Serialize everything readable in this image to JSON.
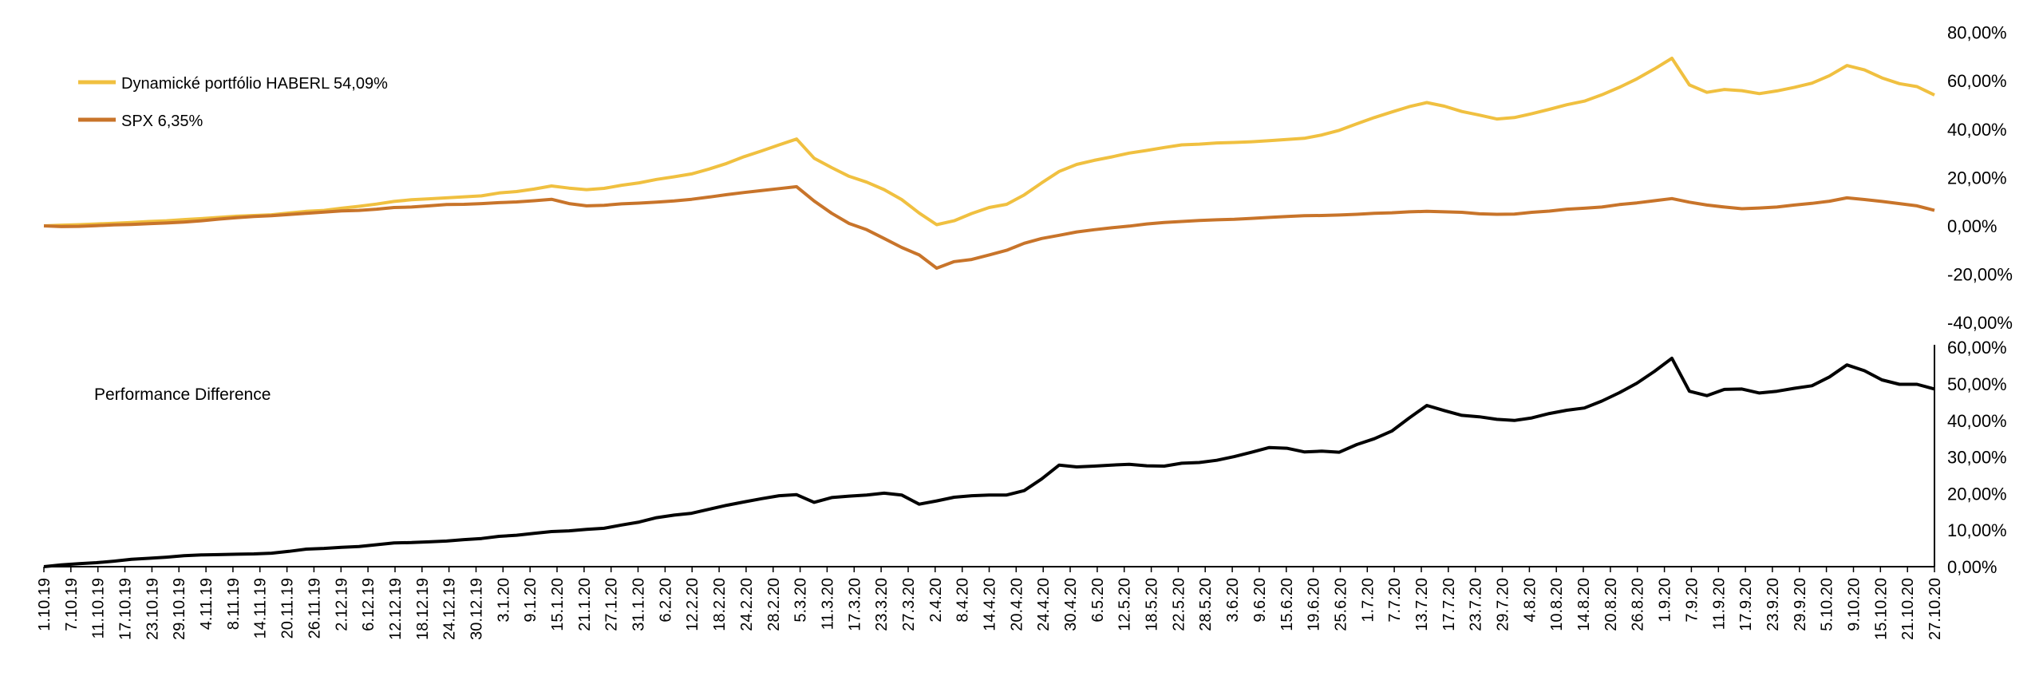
{
  "chart_data": [
    {
      "type": "line",
      "title": "",
      "xlabel": "",
      "ylabel": "",
      "ylim": [
        -40,
        80
      ],
      "y_ticks": [
        "80,00%",
        "60,00%",
        "40,00%",
        "20,00%",
        "0,00%",
        "-20,00%",
        "-40,00%"
      ],
      "y_tick_values": [
        80,
        60,
        40,
        20,
        0,
        -20,
        -40
      ],
      "grid": false,
      "legend_position": "top-left",
      "series": [
        {
          "name": "Dynamické portfólio HABERL 54,09%",
          "color": "#f0c040",
          "values": [
            0,
            0.3,
            0.5,
            0.8,
            1.1,
            1.4,
            1.8,
            2.1,
            2.6,
            3.0,
            3.5,
            4.0,
            4.3,
            4.6,
            5.3,
            6.0,
            6.4,
            7.3,
            8.1,
            9.0,
            10.1,
            10.8,
            11.2,
            11.6,
            12.0,
            12.4,
            13.6,
            14.2,
            15.2,
            16.5,
            15.6,
            15.0,
            15.5,
            16.8,
            17.8,
            19.2,
            20.3,
            21.5,
            23.5,
            25.8,
            28.6,
            31.0,
            33.5,
            35.9,
            28.0,
            24.1,
            20.5,
            18.1,
            15.0,
            10.9,
            5.3,
            0.5,
            2.1,
            5.1,
            7.6,
            8.9,
            12.8,
            17.8,
            22.5,
            25.4,
            27.1,
            28.5,
            30.1,
            31.2,
            32.4,
            33.5,
            33.8,
            34.3,
            34.5,
            34.8,
            35.2,
            35.7,
            36.2,
            37.6,
            39.5,
            42.2,
            44.8,
            47.1,
            49.3,
            51.0,
            49.5,
            47.3,
            45.8,
            44.2,
            44.8,
            46.4,
            48.2,
            50.1,
            51.6,
            54.2,
            57.3,
            60.8,
            64.9,
            69.3,
            58.3,
            55.2,
            56.4,
            55.9,
            54.7,
            55.8,
            57.3,
            59.0,
            62.1,
            66.3,
            64.5,
            61.2,
            58.8,
            57.6,
            54.1
          ]
        },
        {
          "name": "SPX 6,35%",
          "color": "#c8742a",
          "values": [
            0,
            -0.3,
            -0.2,
            0.1,
            0.4,
            0.6,
            0.9,
            1.2,
            1.6,
            2.1,
            2.8,
            3.4,
            3.9,
            4.2,
            4.7,
            5.2,
            5.7,
            6.2,
            6.4,
            6.9,
            7.6,
            7.8,
            8.3,
            8.8,
            8.9,
            9.2,
            9.6,
            9.9,
            10.4,
            11.0,
            9.2,
            8.3,
            8.5,
            9.1,
            9.4,
            9.8,
            10.3,
            11.0,
            11.9,
            12.9,
            13.8,
            14.6,
            15.4,
            16.2,
            10.3,
            5.2,
            1.0,
            -1.6,
            -5.2,
            -8.9,
            -12.0,
            -17.5,
            -14.8,
            -13.9,
            -12.0,
            -10.1,
            -7.2,
            -5.2,
            -3.9,
            -2.5,
            -1.6,
            -0.8,
            -0.1,
            0.8,
            1.4,
            1.8,
            2.2,
            2.5,
            2.7,
            3.1,
            3.5,
            3.9,
            4.2,
            4.3,
            4.5,
            4.8,
            5.2,
            5.4,
            5.8,
            6.0,
            5.8,
            5.6,
            5.0,
            4.8,
            4.9,
            5.6,
            6.1,
            6.9,
            7.3,
            7.8,
            8.8,
            9.5,
            10.4,
            11.3,
            9.8,
            8.6,
            7.8,
            7.1,
            7.4,
            7.8,
            8.6,
            9.3,
            10.2,
            11.6,
            10.9,
            10.1,
            9.2,
            8.3,
            6.4
          ]
        }
      ]
    },
    {
      "type": "line",
      "title": "",
      "xlabel": "",
      "ylabel": "",
      "ylim": [
        0,
        60
      ],
      "y_ticks": [
        "60,00%",
        "50,00%",
        "40,00%",
        "30,00%",
        "20,00%",
        "10,00%",
        "0,00%"
      ],
      "y_tick_values": [
        60,
        50,
        40,
        30,
        20,
        10,
        0
      ],
      "grid": false,
      "annotation": "Performance  Difference",
      "series": [
        {
          "name": "",
          "color": "#000000",
          "values": [
            0,
            0.5,
            0.8,
            1.1,
            1.5,
            2.0,
            2.3,
            2.6,
            3.0,
            3.2,
            3.3,
            3.4,
            3.5,
            3.7,
            4.2,
            4.8,
            5.0,
            5.3,
            5.5,
            6.0,
            6.5,
            6.6,
            6.8,
            7.0,
            7.4,
            7.7,
            8.3,
            8.6,
            9.1,
            9.6,
            9.8,
            10.2,
            10.5,
            11.4,
            12.2,
            13.4,
            14.1,
            14.6,
            15.7,
            16.8,
            17.7,
            18.6,
            19.4,
            19.7,
            17.6,
            18.9,
            19.3,
            19.6,
            20.1,
            19.6,
            17.1,
            18.0,
            19.0,
            19.4,
            19.6,
            19.6,
            20.8,
            24.0,
            27.8,
            27.3,
            27.5,
            27.8,
            28.0,
            27.6,
            27.5,
            28.3,
            28.5,
            29.1,
            30.1,
            31.3,
            32.6,
            32.4,
            31.4,
            31.6,
            31.3,
            33.4,
            35.0,
            37.1,
            40.7,
            44.1,
            42.7,
            41.4,
            41.0,
            40.3,
            40.0,
            40.7,
            41.9,
            42.8,
            43.4,
            45.3,
            47.6,
            50.2,
            53.4,
            57.0,
            48.0,
            46.8,
            48.5,
            48.6,
            47.5,
            48.0,
            48.8,
            49.5,
            51.9,
            55.2,
            53.6,
            51.1,
            49.9,
            49.9,
            48.6
          ]
        }
      ]
    }
  ],
  "x_tick_labels": [
    "1.10.19",
    "7.10.19",
    "11.10.19",
    "17.10.19",
    "23.10.19",
    "29.10.19",
    "4.11.19",
    "8.11.19",
    "14.11.19",
    "20.11.19",
    "26.11.19",
    "2.12.19",
    "6.12.19",
    "12.12.19",
    "18.12.19",
    "24.12.19",
    "30.12.19",
    "3.1.20",
    "9.1.20",
    "15.1.20",
    "21.1.20",
    "27.1.20",
    "31.1.20",
    "6.2.20",
    "12.2.20",
    "18.2.20",
    "24.2.20",
    "28.2.20",
    "5.3.20",
    "11.3.20",
    "17.3.20",
    "23.3.20",
    "27.3.20",
    "2.4.20",
    "8.4.20",
    "14.4.20",
    "20.4.20",
    "24.4.20",
    "30.4.20",
    "6.5.20",
    "12.5.20",
    "18.5.20",
    "22.5.20",
    "28.5.20",
    "3.6.20",
    "9.6.20",
    "15.6.20",
    "19.6.20",
    "25.6.20",
    "1.7.20",
    "7.7.20",
    "13.7.20",
    "17.7.20",
    "23.7.20",
    "29.7.20",
    "4.8.20",
    "10.8.20",
    "14.8.20",
    "20.8.20",
    "26.8.20",
    "1.9.20",
    "7.9.20",
    "11.9.20",
    "17.9.20",
    "23.9.20",
    "29.9.20",
    "5.10.20",
    "9.10.20",
    "15.10.20",
    "21.10.20",
    "27.10.20"
  ]
}
